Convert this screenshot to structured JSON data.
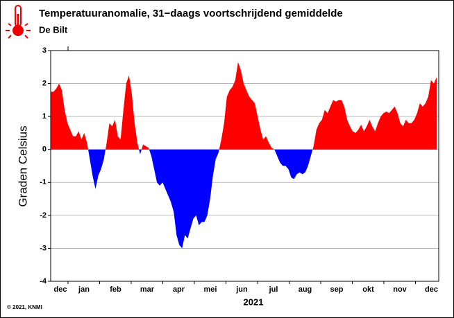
{
  "chart_data": {
    "type": "area",
    "title": "Temperatuuranomalie, 31−daags voortschrijdend gemiddelde",
    "subtitle": "De Bilt",
    "ylabel": "Graden Celsius",
    "xlabel": "2021",
    "credit": "© 2021, KNMI",
    "months": [
      "dec",
      "jan",
      "feb",
      "mar",
      "apr",
      "mei",
      "jun",
      "jul",
      "aug",
      "sep",
      "okt",
      "nov",
      "dec"
    ],
    "pos_color": "#ff0000",
    "neg_color": "#0000ff",
    "ylim": [
      -4,
      3
    ],
    "yticks": [
      -4,
      -3,
      -2,
      -1,
      0,
      1,
      2,
      3
    ],
    "grid": true,
    "values": [
      1.75,
      1.75,
      1.85,
      2.0,
      1.8,
      1.2,
      0.8,
      0.6,
      0.4,
      0.4,
      0.55,
      0.3,
      0.5,
      0.2,
      -0.3,
      -0.8,
      -1.2,
      -0.8,
      -0.6,
      -0.3,
      0.2,
      0.8,
      0.7,
      0.9,
      0.4,
      0.3,
      1.2,
      2.0,
      2.25,
      1.7,
      0.8,
      0.2,
      -0.15,
      0.15,
      0.1,
      0.05,
      -0.2,
      -0.6,
      -1.0,
      -1.1,
      -1.0,
      -1.2,
      -1.4,
      -1.6,
      -1.9,
      -2.6,
      -2.9,
      -3.0,
      -2.6,
      -2.7,
      -2.4,
      -2.1,
      -2.0,
      -2.3,
      -2.2,
      -2.2,
      -2.0,
      -1.5,
      -0.8,
      -0.3,
      -0.1,
      0.3,
      0.8,
      1.6,
      1.8,
      1.9,
      2.1,
      2.65,
      2.4,
      2.0,
      1.8,
      1.6,
      1.5,
      1.4,
      1.0,
      0.6,
      0.3,
      0.4,
      0.2,
      0.05,
      0.0,
      -0.2,
      -0.4,
      -0.5,
      -0.5,
      -0.6,
      -0.85,
      -0.9,
      -0.75,
      -0.7,
      -0.75,
      -0.7,
      -0.5,
      -0.2,
      0.1,
      0.6,
      0.8,
      0.9,
      1.2,
      1.1,
      1.3,
      1.5,
      1.45,
      1.5,
      1.5,
      1.3,
      0.9,
      0.7,
      0.55,
      0.5,
      0.6,
      0.75,
      0.55,
      0.7,
      0.9,
      0.7,
      0.55,
      0.8,
      1.0,
      1.1,
      1.15,
      1.1,
      1.2,
      1.3,
      1.1,
      0.8,
      0.7,
      0.9,
      0.8,
      0.8,
      0.9,
      1.1,
      1.4,
      1.3,
      1.4,
      1.6,
      2.1,
      2.0,
      2.2
    ]
  }
}
